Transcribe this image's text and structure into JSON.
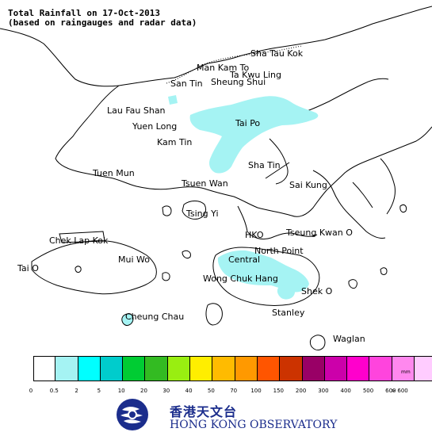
{
  "title": {
    "line1": "Total Rainfall on 17-Oct-2013",
    "line2": "(based on raingauges and radar data)"
  },
  "places": [
    {
      "name": "Sha Tau Kok"
    },
    {
      "name": "Man Kam To"
    },
    {
      "name": "Ta Kwu Ling"
    },
    {
      "name": "San Tin"
    },
    {
      "name": "Sheung Shui"
    },
    {
      "name": "Lau Fau Shan"
    },
    {
      "name": "Yuen Long"
    },
    {
      "name": "Tai Po"
    },
    {
      "name": "Kam Tin"
    },
    {
      "name": "Sha Tin"
    },
    {
      "name": "Tuen Mun"
    },
    {
      "name": "Tsuen Wan"
    },
    {
      "name": "Sai Kung"
    },
    {
      "name": "Tsing Yi"
    },
    {
      "name": "Chek Lap Kok"
    },
    {
      "name": "HKO"
    },
    {
      "name": "Tseung Kwan O"
    },
    {
      "name": "North Point"
    },
    {
      "name": "Central"
    },
    {
      "name": "Mui Wo"
    },
    {
      "name": "Tai O"
    },
    {
      "name": "Wong Chuk Hang"
    },
    {
      "name": "Shek O"
    },
    {
      "name": "Cheung Chau"
    },
    {
      "name": "Stanley"
    },
    {
      "name": "Waglan"
    }
  ],
  "legend": {
    "unit": "mm",
    "colors": [
      "#ffffff",
      "#a5f3f3",
      "#00ffff",
      "#00cccc",
      "#00cc33",
      "#33bb22",
      "#99ee11",
      "#ffee00",
      "#ffbb00",
      "#ff9900",
      "#ff5500",
      "#cc3300",
      "#990066",
      "#cc00aa",
      "#ff00cc",
      "#ff44dd",
      "#ff88ee",
      "#ffccff"
    ],
    "ticks": [
      "0",
      "0.5",
      "2",
      "5",
      "10",
      "20",
      "30",
      "40",
      "50",
      "70",
      "100",
      "150",
      "200",
      "300",
      "400",
      "500",
      "600",
      "> 600"
    ]
  },
  "rain_region_color": "#a5f3f3",
  "land_color": "#ffffff",
  "coast_color": "#000000",
  "org": {
    "name_zh": "香港天文台",
    "name_en": "HONG KONG OBSERVATORY",
    "brand_color": "#1b2d8c"
  }
}
